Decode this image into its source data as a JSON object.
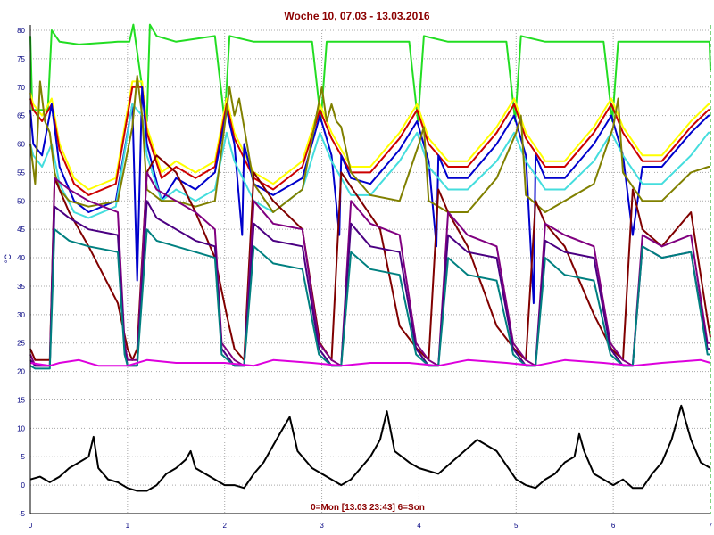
{
  "chart_data": {
    "type": "line",
    "title": "Woche 10, 07.03 - 13.03.2016",
    "footer": "0=Mon [13.03 23:43] 6=Son",
    "ylabel": "°C",
    "xlim": [
      0,
      7
    ],
    "ylim": [
      -5,
      80
    ],
    "xticks": [
      "0",
      "1",
      "2",
      "3",
      "4",
      "5",
      "6",
      "7"
    ],
    "yticks": [
      "-5",
      "0",
      "5",
      "10",
      "15",
      "20",
      "25",
      "30",
      "35",
      "40",
      "45",
      "50",
      "55",
      "60",
      "65",
      "70",
      "75",
      "80"
    ],
    "grid": true,
    "legend": "none",
    "series": [
      {
        "color": "#22dd22",
        "x": [
          0,
          0.02,
          0.18,
          0.22,
          0.3,
          0.5,
          0.9,
          1.02,
          1.06,
          1.2,
          1.23,
          1.3,
          1.5,
          1.9,
          2.0,
          2.05,
          2.3,
          2.9,
          2.99,
          3.05,
          3.3,
          3.9,
          3.99,
          4.05,
          4.3,
          4.9,
          4.99,
          5.05,
          5.3,
          5.9,
          5.99,
          6.05,
          6.3,
          6.9,
          6.99,
          7.0
        ],
        "y": [
          79,
          66,
          66,
          80,
          78,
          77.5,
          78,
          78,
          81,
          64,
          81,
          79,
          78,
          79,
          64,
          79,
          78,
          78,
          64,
          78,
          78,
          78,
          64,
          79,
          78,
          78,
          64,
          79,
          78,
          78,
          64,
          78,
          78,
          78,
          78,
          73
        ]
      },
      {
        "color": "#ffff00",
        "x": [
          0,
          0.03,
          0.12,
          0.22,
          0.3,
          0.45,
          0.6,
          0.88,
          1.05,
          1.15,
          1.2,
          1.35,
          1.5,
          1.7,
          1.9,
          2.02,
          2.1,
          2.3,
          2.5,
          2.8,
          2.98,
          3.1,
          3.3,
          3.5,
          3.8,
          3.98,
          4.1,
          4.3,
          4.5,
          4.8,
          4.98,
          5.1,
          5.3,
          5.5,
          5.8,
          5.98,
          6.1,
          6.3,
          6.5,
          6.8,
          6.98,
          7.0
        ],
        "y": [
          69,
          67,
          65,
          68,
          60,
          54,
          52,
          54,
          71,
          71,
          63,
          55,
          57,
          55,
          57,
          68,
          62,
          55,
          53,
          57,
          67,
          62,
          56,
          56,
          62,
          67,
          61,
          57,
          57,
          63,
          68,
          62,
          57,
          57,
          63,
          68,
          63,
          58,
          58,
          64,
          67,
          67
        ]
      },
      {
        "color": "#cc0000",
        "x": [
          0,
          0.03,
          0.12,
          0.22,
          0.3,
          0.45,
          0.6,
          0.88,
          1.05,
          1.15,
          1.2,
          1.35,
          1.5,
          1.7,
          1.9,
          2.02,
          2.1,
          2.3,
          2.5,
          2.8,
          2.98,
          3.1,
          3.3,
          3.5,
          3.8,
          3.98,
          4.1,
          4.3,
          4.5,
          4.8,
          4.98,
          5.1,
          5.3,
          5.5,
          5.8,
          5.98,
          6.1,
          6.3,
          6.5,
          6.8,
          6.98,
          7.0
        ],
        "y": [
          68,
          66,
          64,
          67,
          59,
          53,
          51,
          53,
          70,
          70,
          62,
          54,
          56,
          54,
          56,
          67,
          61,
          54,
          52,
          56,
          66,
          61,
          55,
          55,
          61,
          66,
          60,
          56,
          56,
          62,
          67,
          61,
          56,
          56,
          62,
          67,
          62,
          57,
          57,
          63,
          66,
          66
        ]
      },
      {
        "color": "#0000cc",
        "x": [
          0,
          0.03,
          0.12,
          0.22,
          0.3,
          0.45,
          0.6,
          0.88,
          1.05,
          1.1,
          1.15,
          1.2,
          1.35,
          1.5,
          1.7,
          1.9,
          2.02,
          2.1,
          2.18,
          2.2,
          2.3,
          2.5,
          2.8,
          2.98,
          3.1,
          3.18,
          3.2,
          3.3,
          3.5,
          3.8,
          3.98,
          4.1,
          4.18,
          4.2,
          4.3,
          4.5,
          4.8,
          4.98,
          5.1,
          5.18,
          5.2,
          5.3,
          5.5,
          5.8,
          5.98,
          6.1,
          6.2,
          6.3,
          6.5,
          6.8,
          6.98,
          7.0
        ],
        "y": [
          66,
          60,
          58,
          67,
          56,
          50,
          48,
          50,
          67,
          36,
          70,
          60,
          50,
          54,
          52,
          55,
          66,
          60,
          44,
          60,
          53,
          51,
          54,
          65,
          58,
          44,
          58,
          54,
          53,
          59,
          64,
          57,
          42,
          58,
          54,
          54,
          60,
          65,
          58,
          32,
          58,
          54,
          54,
          60,
          65,
          58,
          44,
          56,
          56,
          62,
          65,
          65
        ]
      },
      {
        "color": "#44dddd",
        "x": [
          0,
          0.03,
          0.12,
          0.22,
          0.3,
          0.45,
          0.6,
          0.88,
          1.05,
          1.15,
          1.2,
          1.35,
          1.5,
          1.7,
          1.9,
          2.02,
          2.1,
          2.3,
          2.5,
          2.8,
          2.98,
          3.1,
          3.3,
          3.5,
          3.8,
          3.98,
          4.1,
          4.3,
          4.5,
          4.8,
          4.98,
          5.1,
          5.3,
          5.5,
          5.8,
          5.98,
          6.1,
          6.3,
          6.5,
          6.8,
          6.98,
          7.0
        ],
        "y": [
          60,
          58,
          56,
          60,
          53,
          48,
          47,
          49,
          67,
          65,
          58,
          50,
          52,
          50,
          52,
          62,
          57,
          50,
          48,
          52,
          62,
          57,
          51,
          51,
          57,
          62,
          56,
          52,
          52,
          57,
          62,
          57,
          52,
          52,
          57,
          62,
          58,
          53,
          53,
          58,
          62,
          62
        ]
      },
      {
        "color": "#808000",
        "x": [
          0,
          0.05,
          0.1,
          0.15,
          0.2,
          0.25,
          0.3,
          0.4,
          0.6,
          0.9,
          1.05,
          1.1,
          1.15,
          1.2,
          1.35,
          1.5,
          1.7,
          1.9,
          2.05,
          2.1,
          2.15,
          2.3,
          2.5,
          2.8,
          3.0,
          3.05,
          3.1,
          3.15,
          3.2,
          3.3,
          3.5,
          3.8,
          4.0,
          4.05,
          4.1,
          4.3,
          4.5,
          4.8,
          5.0,
          5.05,
          5.1,
          5.3,
          5.5,
          5.8,
          6.0,
          6.05,
          6.1,
          6.3,
          6.5,
          6.8,
          6.98,
          7.0
        ],
        "y": [
          60,
          53,
          71,
          64,
          62,
          55,
          52,
          50,
          49,
          50,
          63,
          72,
          65,
          52,
          50,
          50,
          49,
          50,
          70,
          65,
          68,
          53,
          48,
          52,
          70,
          64,
          67,
          64,
          63,
          55,
          51,
          50,
          60,
          63,
          50,
          48,
          48,
          54,
          62,
          65,
          51,
          48,
          50,
          53,
          63,
          68,
          55,
          50,
          50,
          55,
          56,
          56
        ]
      },
      {
        "color": "#800000",
        "x": [
          0,
          0.05,
          0.2,
          0.25,
          0.4,
          0.6,
          0.9,
          1.0,
          1.05,
          1.1,
          1.2,
          1.3,
          1.5,
          1.7,
          1.9,
          2.02,
          2.1,
          2.2,
          2.3,
          2.5,
          2.8,
          2.98,
          3.1,
          3.2,
          3.4,
          3.6,
          3.8,
          3.98,
          4.1,
          4.2,
          4.3,
          4.5,
          4.8,
          4.98,
          5.1,
          5.2,
          5.3,
          5.5,
          5.8,
          5.98,
          6.1,
          6.2,
          6.3,
          6.5,
          6.8,
          6.98,
          7.0
        ],
        "y": [
          24,
          22,
          22,
          54,
          48,
          42,
          32,
          24,
          22,
          24,
          55,
          58,
          55,
          48,
          40,
          30,
          24,
          22,
          55,
          50,
          45,
          25,
          22,
          55,
          50,
          45,
          28,
          24,
          22,
          52,
          48,
          42,
          28,
          24,
          22,
          50,
          46,
          42,
          30,
          24,
          22,
          52,
          45,
          42,
          48,
          28,
          26
        ]
      },
      {
        "color": "#800080",
        "x": [
          0,
          0.05,
          0.2,
          0.25,
          0.4,
          0.6,
          0.9,
          0.97,
          1.0,
          1.1,
          1.2,
          1.3,
          1.5,
          1.7,
          1.9,
          1.97,
          2.1,
          2.2,
          2.3,
          2.5,
          2.8,
          2.97,
          3.1,
          3.2,
          3.3,
          3.5,
          3.8,
          3.97,
          4.1,
          4.2,
          4.3,
          4.5,
          4.8,
          4.97,
          5.1,
          5.2,
          5.3,
          5.5,
          5.8,
          5.97,
          6.1,
          6.2,
          6.3,
          6.5,
          6.8,
          6.97,
          7.0
        ],
        "y": [
          23,
          21,
          21,
          54,
          52,
          50,
          48,
          25,
          22,
          22,
          55,
          52,
          50,
          48,
          45,
          25,
          22,
          21,
          50,
          46,
          45,
          25,
          22,
          21,
          50,
          46,
          44,
          25,
          22,
          21,
          48,
          44,
          42,
          25,
          22,
          21,
          46,
          44,
          42,
          25,
          22,
          21,
          44,
          42,
          44,
          25,
          25
        ]
      },
      {
        "color": "#4b0082",
        "x": [
          0,
          0.05,
          0.2,
          0.25,
          0.4,
          0.6,
          0.9,
          0.97,
          1.0,
          1.1,
          1.2,
          1.3,
          1.5,
          1.7,
          1.9,
          1.97,
          2.1,
          2.2,
          2.3,
          2.5,
          2.8,
          2.97,
          3.1,
          3.2,
          3.3,
          3.5,
          3.8,
          3.97,
          4.1,
          4.2,
          4.3,
          4.5,
          4.8,
          4.97,
          5.1,
          5.2,
          5.3,
          5.5,
          5.8,
          5.97,
          6.1,
          6.2,
          6.3,
          6.5,
          6.8,
          6.97,
          7.0
        ],
        "y": [
          22,
          21,
          21,
          49,
          47,
          45,
          44,
          24,
          21,
          21,
          50,
          47,
          45,
          43,
          42,
          24,
          21,
          21,
          46,
          43,
          42,
          24,
          21,
          21,
          46,
          42,
          41,
          24,
          21,
          21,
          44,
          41,
          40,
          24,
          21,
          21,
          43,
          41,
          40,
          24,
          21,
          21,
          42,
          40,
          41,
          24,
          24
        ]
      },
      {
        "color": "#008080",
        "x": [
          0,
          0.05,
          0.2,
          0.25,
          0.4,
          0.6,
          0.9,
          0.97,
          1.0,
          1.1,
          1.2,
          1.3,
          1.5,
          1.7,
          1.9,
          1.97,
          2.1,
          2.2,
          2.3,
          2.5,
          2.8,
          2.97,
          3.1,
          3.2,
          3.3,
          3.5,
          3.8,
          3.97,
          4.1,
          4.2,
          4.3,
          4.5,
          4.8,
          4.97,
          5.1,
          5.2,
          5.3,
          5.5,
          5.8,
          5.97,
          6.1,
          6.2,
          6.3,
          6.5,
          6.8,
          6.97,
          7.0
        ],
        "y": [
          21,
          20.5,
          20.5,
          45,
          43,
          42,
          41,
          23,
          21,
          21,
          45,
          43,
          42,
          41,
          40,
          23,
          21,
          21,
          42,
          39,
          38,
          23,
          21,
          21,
          41,
          38,
          37,
          23,
          21,
          21,
          40,
          37,
          36,
          23,
          21,
          21,
          40,
          37,
          36,
          23,
          21,
          21,
          42,
          40,
          41,
          23,
          23
        ]
      },
      {
        "color": "#dd00dd",
        "x": [
          0,
          0.2,
          0.3,
          0.5,
          0.7,
          1.0,
          1.2,
          1.5,
          2.0,
          2.3,
          2.5,
          2.9,
          3.2,
          3.5,
          3.9,
          4.2,
          4.5,
          4.9,
          5.2,
          5.5,
          5.9,
          6.2,
          6.5,
          6.9,
          7.0
        ],
        "y": [
          21.5,
          21,
          21.5,
          22,
          21,
          21,
          22,
          21.5,
          21.5,
          21,
          22,
          21.5,
          21,
          21.5,
          21.5,
          21,
          22,
          21.5,
          21,
          22,
          21.5,
          21,
          21.5,
          22,
          21.5
        ]
      },
      {
        "color": "#000000",
        "x": [
          0,
          0.1,
          0.2,
          0.3,
          0.4,
          0.5,
          0.6,
          0.65,
          0.7,
          0.8,
          0.9,
          1.0,
          1.1,
          1.2,
          1.3,
          1.4,
          1.5,
          1.6,
          1.65,
          1.7,
          1.8,
          1.9,
          2.0,
          2.1,
          2.2,
          2.3,
          2.4,
          2.5,
          2.6,
          2.67,
          2.75,
          2.9,
          3.0,
          3.1,
          3.2,
          3.3,
          3.4,
          3.5,
          3.6,
          3.67,
          3.75,
          3.9,
          4.0,
          4.2,
          4.4,
          4.6,
          4.8,
          5.0,
          5.1,
          5.2,
          5.3,
          5.4,
          5.5,
          5.6,
          5.65,
          5.7,
          5.8,
          5.9,
          6.0,
          6.1,
          6.2,
          6.3,
          6.4,
          6.5,
          6.6,
          6.7,
          6.8,
          6.9,
          7.0
        ],
        "y": [
          1,
          1.5,
          0.5,
          1.5,
          3,
          4,
          5,
          8.5,
          3,
          1,
          0.5,
          -0.5,
          -1,
          -1,
          0,
          2,
          3,
          4.5,
          6,
          3,
          2,
          1,
          0,
          0,
          -0.5,
          2,
          4,
          7,
          10,
          12,
          6,
          3,
          2,
          1,
          0,
          1,
          3,
          5,
          8,
          13,
          6,
          4,
          3,
          2,
          5,
          8,
          6,
          1,
          0,
          -0.5,
          1,
          2,
          4,
          5,
          9,
          6,
          2,
          1,
          0,
          1,
          -0.5,
          -0.5,
          2,
          4,
          8,
          14,
          8,
          4,
          3
        ]
      }
    ]
  }
}
